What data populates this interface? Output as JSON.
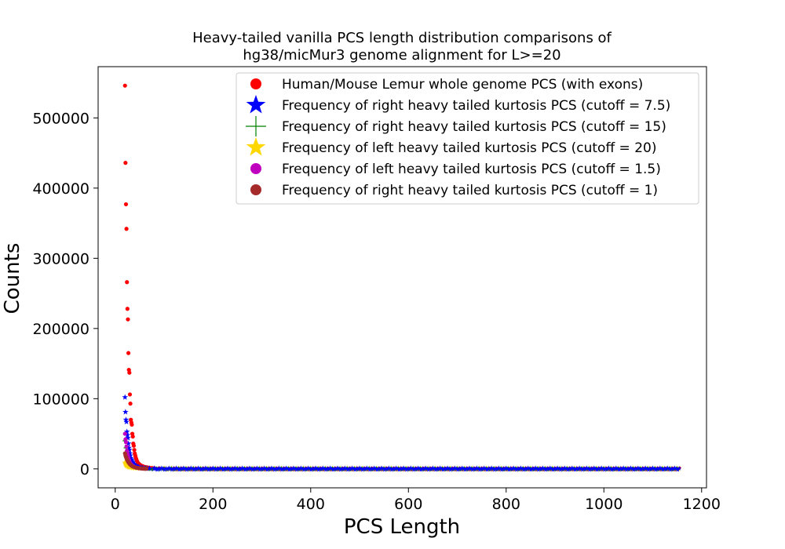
{
  "chart_data": {
    "type": "scatter",
    "title": "Heavy-tailed vanilla PCS length distribution comparisons of hg38/micMur3 genome alignment for L>=20",
    "title_lines": [
      "Heavy-tailed vanilla PCS length distribution comparisons of",
      "hg38/micMur3 genome alignment for L>=20"
    ],
    "xlabel": "PCS Length",
    "ylabel": "Counts",
    "xlim": [
      -35,
      1210
    ],
    "ylim": [
      -27000,
      573000
    ],
    "x_ticks": [
      0,
      200,
      400,
      600,
      800,
      1000,
      1200
    ],
    "x_tick_labels": [
      "0",
      "200",
      "400",
      "600",
      "800",
      "1000",
      "1200"
    ],
    "y_ticks": [
      0,
      100000,
      200000,
      300000,
      400000,
      500000
    ],
    "y_tick_labels": [
      "0",
      "100000",
      "200000",
      "300000",
      "400000",
      "500000"
    ],
    "grid": false,
    "legend_position": "top-right",
    "series": [
      {
        "name": "Human/Mouse Lemur whole genome PCS (with exons)",
        "color": "#ff0000",
        "marker": "circle",
        "x": [
          20,
          21,
          22,
          23,
          24,
          25,
          26,
          27,
          28,
          29,
          30,
          31,
          32,
          33,
          34,
          35,
          36,
          37,
          38,
          39,
          40,
          41,
          42,
          43,
          44,
          45,
          46,
          48,
          50,
          52,
          55,
          58,
          62,
          66,
          70,
          75,
          80,
          90,
          100,
          120
        ],
        "y": [
          546000,
          436000,
          377000,
          342000,
          266000,
          228000,
          213000,
          165000,
          141000,
          137000,
          106000,
          93000,
          70000,
          66000,
          63000,
          50000,
          46000,
          36000,
          33000,
          27000,
          22000,
          19000,
          16000,
          14000,
          12000,
          10500,
          9000,
          7500,
          6200,
          5200,
          4200,
          3400,
          2700,
          2100,
          1700,
          1300,
          1000,
          700,
          450,
          250
        ],
        "tail_x_end": 1155,
        "tail_y": 0
      },
      {
        "name": "Frequency of right heavy tailed kurtosis PCS (cutoff = 7.5)",
        "color": "#0000ff",
        "marker": "star",
        "x": [
          20,
          21,
          22,
          23,
          24,
          25,
          26,
          27,
          28,
          29,
          30,
          31,
          32,
          33,
          34,
          35,
          36,
          38,
          40,
          42,
          45,
          48,
          52,
          56,
          60,
          65,
          70,
          80
        ],
        "y": [
          102000,
          81000,
          70000,
          67000,
          53000,
          48000,
          44000,
          36000,
          30000,
          27000,
          22000,
          19000,
          15500,
          13500,
          12000,
          10000,
          9000,
          7000,
          5600,
          4500,
          3500,
          2700,
          2000,
          1500,
          1100,
          800,
          550,
          300
        ],
        "tail_x_end": 1155,
        "tail_y": 0
      },
      {
        "name": "Frequency of right heavy tailed kurtosis PCS (cutoff = 15)",
        "color": "#008000",
        "marker": "plus",
        "x": [
          20,
          22,
          24,
          26,
          28,
          30,
          32,
          34,
          36,
          40,
          44,
          48,
          55,
          62,
          70
        ],
        "y": [
          40000,
          30000,
          24000,
          18000,
          14000,
          11000,
          8500,
          7000,
          5500,
          4000,
          3000,
          2200,
          1500,
          900,
          500
        ],
        "tail_x_end": 1155,
        "tail_y": 0
      },
      {
        "name": "Frequency of left heavy tailed kurtosis PCS (cutoff = 20)",
        "color": "#ffd700",
        "marker": "star",
        "x": [
          20,
          21,
          22,
          23,
          24,
          26,
          28,
          30,
          33,
          36,
          40,
          45,
          50,
          60,
          70,
          80,
          100
        ],
        "y": [
          9000,
          7000,
          6000,
          5000,
          4200,
          3300,
          2700,
          2200,
          1800,
          1400,
          1100,
          900,
          700,
          500,
          350,
          250,
          150
        ],
        "tail_x_end": 1155,
        "tail_y": 0
      },
      {
        "name": "Frequency of left heavy tailed kurtosis PCS (cutoff = 1.5)",
        "color": "#bf00bf",
        "marker": "circle",
        "x": [
          20,
          21,
          22,
          23,
          24,
          25,
          26,
          27,
          28,
          29,
          30,
          32,
          34,
          36,
          38,
          40,
          43,
          46,
          50,
          55,
          60
        ],
        "y": [
          50000,
          42000,
          38000,
          32000,
          26000,
          22000,
          19000,
          16000,
          13000,
          11000,
          9000,
          7000,
          5500,
          4300,
          3400,
          2600,
          1900,
          1400,
          900,
          500,
          250
        ]
      },
      {
        "name": "Frequency of right heavy tailed kurtosis PCS (cutoff = 1)",
        "color": "#a52a2a",
        "marker": "circle",
        "x": [
          20,
          21,
          22,
          23,
          24,
          25,
          26,
          27,
          28,
          29,
          30,
          31,
          32,
          33,
          34,
          35,
          36,
          38,
          40,
          42,
          44,
          46,
          48,
          50,
          52,
          54,
          56,
          58,
          60,
          62,
          64
        ],
        "y": [
          22000,
          19000,
          17000,
          15000,
          13500,
          12000,
          10500,
          9500,
          8500,
          7500,
          6800,
          6000,
          5400,
          4800,
          4300,
          3800,
          3400,
          2800,
          2300,
          1900,
          1600,
          1300,
          1100,
          900,
          750,
          600,
          500,
          400,
          320,
          250,
          200
        ]
      }
    ]
  }
}
